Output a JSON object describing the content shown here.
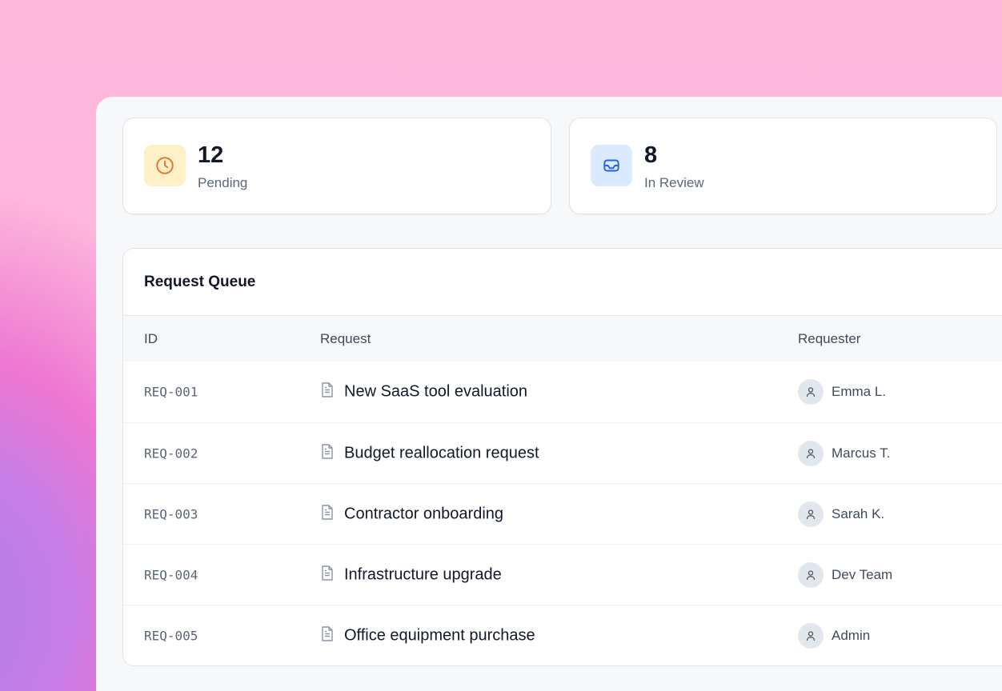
{
  "stats": [
    {
      "value": "12",
      "label": "Pending",
      "icon": "clock-icon",
      "icon_bg": "#fef0c7",
      "icon_color": "#e8762c"
    },
    {
      "value": "8",
      "label": "In Review",
      "icon": "inbox-icon",
      "icon_bg": "#dbeafe",
      "icon_color": "#2563eb"
    }
  ],
  "queue": {
    "title": "Request Queue",
    "columns": [
      "ID",
      "Request",
      "Requester"
    ],
    "rows": [
      {
        "id": "REQ-001",
        "request": "New SaaS tool evaluation",
        "requester": "Emma L."
      },
      {
        "id": "REQ-002",
        "request": "Budget reallocation request",
        "requester": "Marcus T."
      },
      {
        "id": "REQ-003",
        "request": "Contractor onboarding",
        "requester": "Sarah K."
      },
      {
        "id": "REQ-004",
        "request": "Infrastructure upgrade",
        "requester": "Dev Team"
      },
      {
        "id": "REQ-005",
        "request": "Office equipment purchase",
        "requester": "Admin"
      }
    ]
  }
}
